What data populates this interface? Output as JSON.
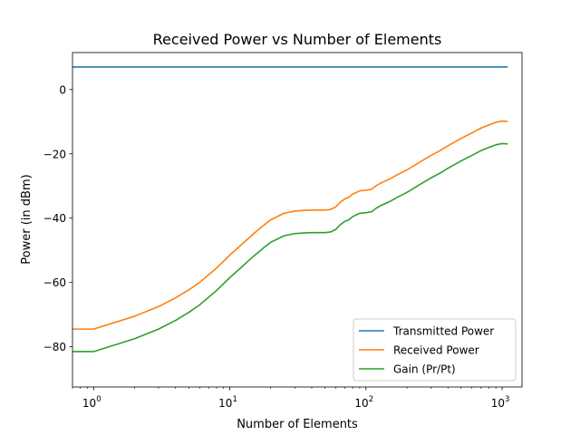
{
  "chart_data": {
    "type": "line",
    "title": "Received Power vs Number of Elements",
    "xlabel": "Number of Elements",
    "ylabel": "Power (in dBm)",
    "xscale": "log",
    "xlim": [
      0.7,
      1400
    ],
    "ylim": [
      -92.5,
      11.5
    ],
    "xticks": [
      {
        "value": 1,
        "base": "10",
        "exp": "0"
      },
      {
        "value": 10,
        "base": "10",
        "exp": "1"
      },
      {
        "value": 100,
        "base": "10",
        "exp": "2"
      },
      {
        "value": 1000,
        "base": "10",
        "exp": "3"
      }
    ],
    "yticks": [
      {
        "value": 0,
        "label": "0"
      },
      {
        "value": -20,
        "label": "−20"
      },
      {
        "value": -40,
        "label": "−40"
      },
      {
        "value": -60,
        "label": "−60"
      },
      {
        "value": -80,
        "label": "−80"
      }
    ],
    "grid": false,
    "legend_position": "lower-right",
    "series": [
      {
        "name": "Transmitted Power",
        "color": "#1f77b4",
        "x": [
          0.7,
          1100
        ],
        "y": [
          7,
          7
        ]
      },
      {
        "name": "Received Power",
        "color": "#ff7f0e",
        "x": [
          0.7,
          1,
          2,
          3,
          4,
          5,
          6,
          8,
          10,
          12,
          15,
          18,
          20,
          25,
          30,
          35,
          40,
          50,
          55,
          60,
          65,
          70,
          75,
          80,
          90,
          100,
          110,
          120,
          130,
          150,
          170,
          200,
          250,
          300,
          350,
          400,
          500,
          600,
          700,
          800,
          900,
          1000,
          1100
        ],
        "y": [
          -74.5,
          -74.5,
          -70.5,
          -67.5,
          -64.8,
          -62.3,
          -60.0,
          -55.5,
          -51.5,
          -48.5,
          -44.8,
          -42.0,
          -40.5,
          -38.5,
          -37.8,
          -37.6,
          -37.5,
          -37.5,
          -37.3,
          -36.5,
          -35.0,
          -34.0,
          -33.5,
          -32.5,
          -31.5,
          -31.3,
          -31.0,
          -29.8,
          -29.0,
          -27.8,
          -26.5,
          -25.0,
          -22.5,
          -20.5,
          -19.0,
          -17.5,
          -15.2,
          -13.5,
          -12.0,
          -11.0,
          -10.2,
          -9.8,
          -9.9
        ]
      },
      {
        "name": "Gain (Pr/Pt)",
        "color": "#2ca02c",
        "x": [
          0.7,
          1,
          2,
          3,
          4,
          5,
          6,
          8,
          10,
          12,
          15,
          18,
          20,
          25,
          30,
          35,
          40,
          50,
          55,
          60,
          65,
          70,
          75,
          80,
          90,
          100,
          110,
          120,
          130,
          150,
          170,
          200,
          250,
          300,
          350,
          400,
          500,
          600,
          700,
          800,
          900,
          1000,
          1100
        ],
        "y": [
          -81.5,
          -81.5,
          -77.5,
          -74.5,
          -71.8,
          -69.3,
          -67.0,
          -62.5,
          -58.5,
          -55.5,
          -51.8,
          -49.0,
          -47.5,
          -45.5,
          -44.8,
          -44.6,
          -44.5,
          -44.5,
          -44.3,
          -43.5,
          -42.0,
          -41.0,
          -40.5,
          -39.5,
          -38.5,
          -38.3,
          -38.0,
          -36.8,
          -36.0,
          -34.8,
          -33.5,
          -32.0,
          -29.5,
          -27.5,
          -26.0,
          -24.5,
          -22.2,
          -20.5,
          -19.0,
          -18.0,
          -17.2,
          -16.8,
          -16.9
        ]
      }
    ]
  }
}
